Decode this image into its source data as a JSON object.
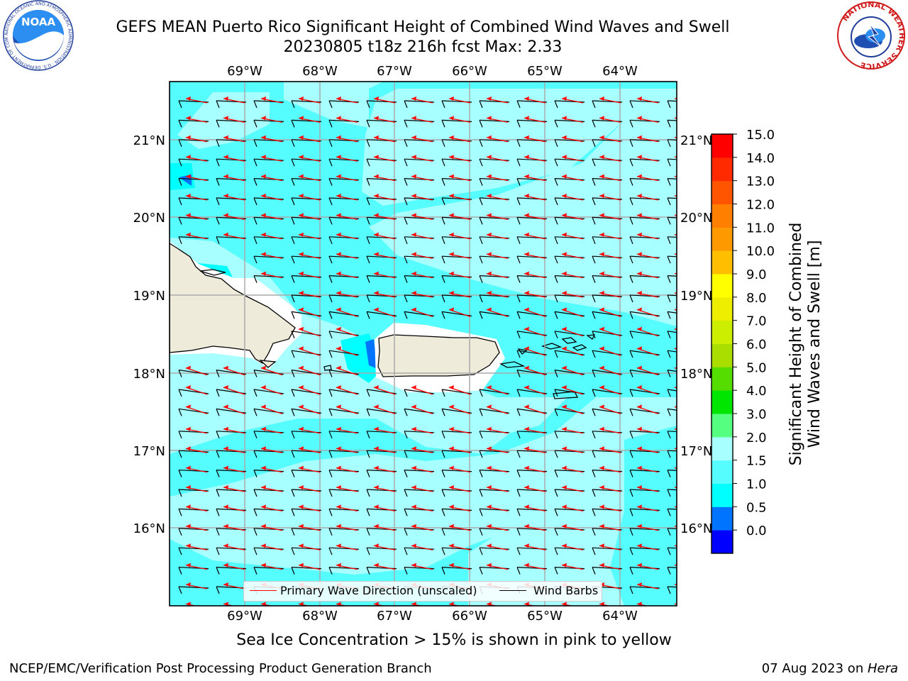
{
  "header": {
    "title_line1": "GEFS MEAN Puerto Rico Significant Height of Combined Wind Waves and Swell",
    "title_line2": "20230805 t18z 216h fcst   Max: 2.33"
  },
  "map": {
    "lon_ticks": [
      "69°W",
      "68°W",
      "67°W",
      "66°W",
      "65°W",
      "64°W"
    ],
    "lat_ticks": [
      "21°N",
      "20°N",
      "19°N",
      "18°N",
      "17°N",
      "16°N"
    ],
    "land_color": "#efebdb",
    "sea_colors": {
      "light": "#a8ffff",
      "mid": "#55fdff",
      "cyan": "#00ffff",
      "blue": "#0073ff"
    },
    "arrow_color": "#ff0000",
    "barb_color": "#000000"
  },
  "colorbar": {
    "label_line1": "Significant Height of Combined",
    "label_line2": "Wind Waves and Swell [m]",
    "ticks": [
      "15.0",
      "14.0",
      "13.0",
      "12.0",
      "11.0",
      "10.0",
      "9.0",
      "8.0",
      "7.0",
      "6.0",
      "5.0",
      "4.0",
      "3.0",
      "2.0",
      "1.5",
      "1.0",
      "0.5",
      "0.0"
    ],
    "colors": [
      "#0000ff",
      "#0073ff",
      "#00ffff",
      "#55fdff",
      "#a8ffff",
      "#55ff80",
      "#00e600",
      "#55dd00",
      "#aadd00",
      "#ccee00",
      "#eeee00",
      "#ffff00",
      "#ffbf00",
      "#ff9900",
      "#ff7f00",
      "#ff5500",
      "#ff2a00",
      "#ff0000"
    ]
  },
  "legend": {
    "wave_label": "Primary Wave Direction (unscaled)",
    "barb_label": "Wind Barbs"
  },
  "note": "Sea Ice Concentration > 15% is shown in pink to yellow",
  "footer": {
    "left": "NCEP/EMC/Verification Post Processing Product Generation Branch",
    "date": "07 Aug 2023 on ",
    "machine": "Hera"
  },
  "logos": {
    "noaa_text": "NOAA",
    "noaa_ring": "NATIONAL OCEANIC AND ATMOSPHERIC ADMINISTRATION · U.S. DEPARTMENT OF COMMERCE",
    "nws_ring": "NATIONAL WEATHER SERVICE"
  }
}
